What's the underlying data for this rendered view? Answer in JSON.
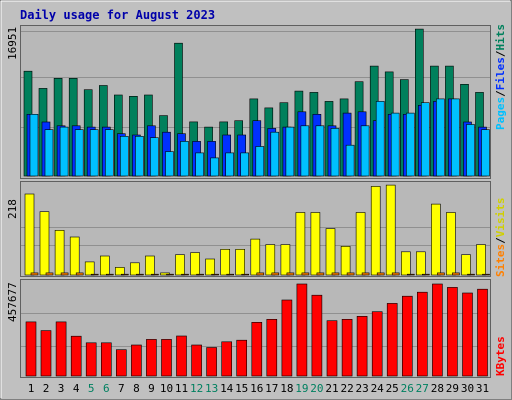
{
  "chart_data": [
    {
      "type": "bar",
      "title": "Daily usage for August 2023",
      "ylabel": "16951",
      "legend_parts": [
        "Pages",
        "/",
        "Files",
        "/",
        "Hits"
      ],
      "categories": [
        "1",
        "2",
        "3",
        "4",
        "5",
        "6",
        "7",
        "8",
        "9",
        "10",
        "11",
        "12",
        "13",
        "14",
        "15",
        "16",
        "17",
        "18",
        "19",
        "20",
        "21",
        "22",
        "23",
        "24",
        "25",
        "26",
        "27",
        "28",
        "29",
        "30",
        "31"
      ],
      "weekend_days": [
        "5",
        "6",
        "12",
        "13",
        "19",
        "20",
        "26",
        "27"
      ],
      "ylim": [
        0,
        16951
      ],
      "series": [
        {
          "name": "Hits",
          "values": [
            12003,
            10035,
            11190,
            11190,
            9885,
            10364,
            9277,
            9131,
            9277,
            6922,
            15209,
            6193,
            5605,
            6193,
            6332,
            8836,
            7800,
            8396,
            9719,
            9579,
            8543,
            8836,
            10800,
            12591,
            11926,
            11044,
            16823,
            12591,
            12591,
            10506,
            9579
          ]
        },
        {
          "name": "Files",
          "values": [
            7064,
            6181,
            5745,
            5745,
            5605,
            5605,
            4846,
            4691,
            5745,
            5021,
            4846,
            3962,
            3962,
            4691,
            4691,
            6332,
            5454,
            5605,
            7350,
            7064,
            5745,
            7204,
            7350,
            6332,
            7064,
            7064,
            8103,
            8543,
            8836,
            6181,
            5605
          ]
        },
        {
          "name": "Pages",
          "values": [
            7064,
            5302,
            5605,
            5302,
            5302,
            5302,
            4543,
            4543,
            4388,
            2797,
            3962,
            2649,
            2071,
            2649,
            2649,
            3377,
            5021,
            5605,
            5745,
            5745,
            5454,
            3532,
            5745,
            8543,
            7204,
            7204,
            8396,
            8836,
            8836,
            5903,
            5302
          ]
        }
      ]
    },
    {
      "type": "bar",
      "ylabel": "218",
      "legend_parts": [
        "Sites",
        "/",
        "Visits"
      ],
      "ylim": [
        0,
        218
      ],
      "series": [
        {
          "name": "Visits",
          "values": [
            192,
            150,
            106,
            90,
            31,
            45,
            18,
            29,
            45,
            5,
            48,
            53,
            38,
            61,
            61,
            85,
            72,
            72,
            148,
            148,
            110,
            68,
            148,
            210,
            213,
            55,
            55,
            168,
            148,
            48,
            72
          ]
        },
        {
          "name": "Sites",
          "values": [
            5,
            5,
            5,
            5,
            2,
            2,
            2,
            2,
            2,
            2,
            2,
            2,
            2,
            2,
            2,
            5,
            5,
            5,
            5,
            5,
            5,
            5,
            5,
            5,
            5,
            2,
            2,
            5,
            5,
            2,
            2
          ]
        }
      ]
    },
    {
      "type": "bar",
      "ylabel": "457677",
      "legend_parts": [
        "KBytes"
      ],
      "ylim": [
        0,
        457677
      ],
      "series": [
        {
          "name": "KBytes",
          "values": [
            269000,
            226000,
            269000,
            198000,
            165000,
            165000,
            131000,
            154000,
            182000,
            182000,
            199000,
            154000,
            142000,
            170000,
            178000,
            267000,
            282000,
            378000,
            457677,
            402000,
            275000,
            282000,
            297000,
            320000,
            361000,
            397000,
            417000,
            457677,
            441000,
            413000,
            432000
          ]
        }
      ]
    }
  ]
}
